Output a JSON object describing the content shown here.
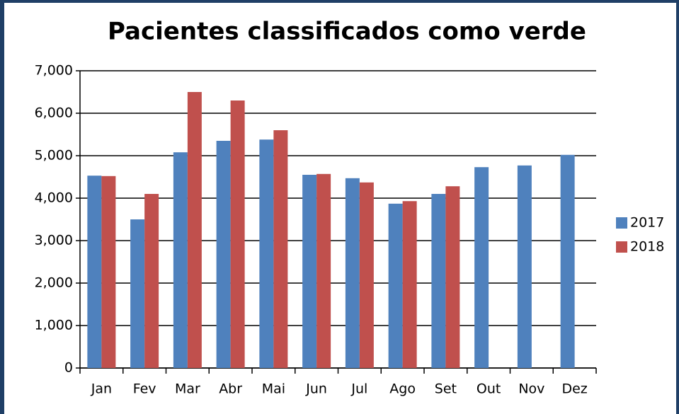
{
  "chart_data": {
    "type": "bar",
    "title": "Pacientes classificados como verde",
    "categories": [
      "Jan",
      "Fev",
      "Mar",
      "Abr",
      "Mai",
      "Jun",
      "Jul",
      "Ago",
      "Set",
      "Out",
      "Nov",
      "Dez"
    ],
    "series": [
      {
        "name": "2017",
        "color": "#4f81bd",
        "values": [
          4530,
          3500,
          5080,
          5350,
          5380,
          4550,
          4470,
          3870,
          4100,
          4730,
          4770,
          5020
        ]
      },
      {
        "name": "2018",
        "color": "#c0504d",
        "values": [
          4520,
          4100,
          6500,
          6300,
          5600,
          4570,
          4370,
          3930,
          4280,
          null,
          null,
          null
        ]
      }
    ],
    "ylim": [
      0,
      7000
    ],
    "yticks": [
      0,
      {
        "value": 1000,
        "label": "1,000"
      },
      {
        "value": 2000,
        "label": "2,000"
      },
      {
        "value": 3000,
        "label": "3,000"
      },
      {
        "value": 4000,
        "label": "4,000"
      },
      {
        "value": 5000,
        "label": "5,000"
      },
      {
        "value": 6000,
        "label": "6,000"
      },
      {
        "value": 7000,
        "label": "7,000"
      }
    ],
    "grid": true,
    "legend": "right"
  }
}
